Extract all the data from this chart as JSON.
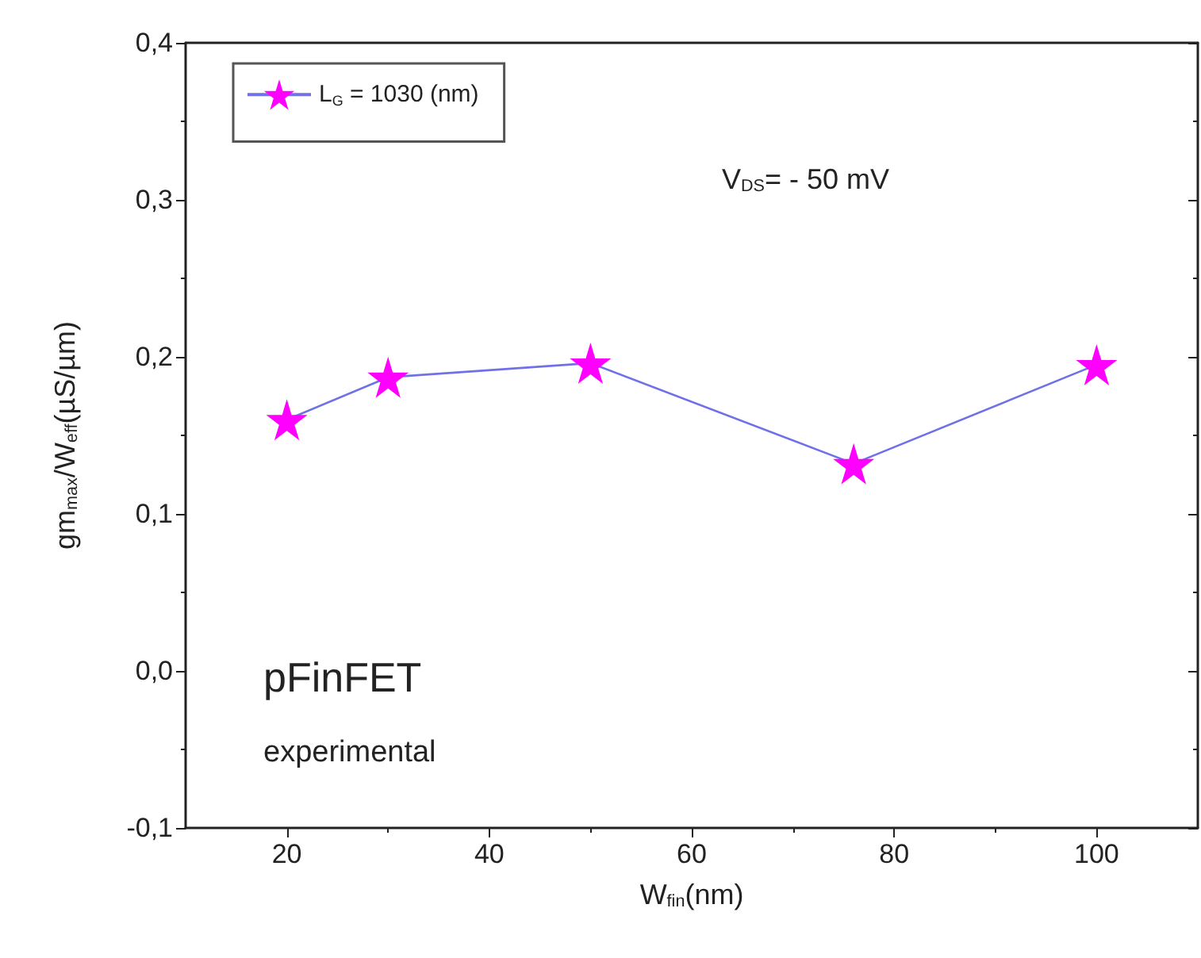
{
  "chart_data": {
    "type": "line",
    "xlabel": "W$_{fin}$(nm)",
    "ylabel": "gm$_{max}$/W$_{eff}$(µS/µm)",
    "x": [
      20,
      30,
      50,
      76,
      100
    ],
    "series": [
      {
        "name": "L$_{G}$ = 1030 (nm)",
        "color": "#ff00ff",
        "values": [
          0.16,
          0.187,
          0.196,
          0.132,
          0.195
        ]
      }
    ],
    "xlim": [
      10,
      110
    ],
    "xticks": [
      20,
      40,
      60,
      80,
      100
    ],
    "ylim": [
      -0.1,
      0.4
    ],
    "yticks": [
      {
        "value": -0.1,
        "label": "-0,1"
      },
      {
        "value": 0,
        "label": "0,0"
      },
      {
        "value": 0.1,
        "label": "0,1"
      },
      {
        "value": 0.2,
        "label": "0,2"
      },
      {
        "value": 0.3,
        "label": "0,3"
      },
      {
        "value": 0.4,
        "label": "0,4"
      }
    ],
    "annotations": [
      "V$_{DS}$= - 50 mV",
      "pFinFET",
      "experimental"
    ],
    "legend": "top left",
    "grid": false,
    "marker": "star",
    "line_style": "solid"
  }
}
